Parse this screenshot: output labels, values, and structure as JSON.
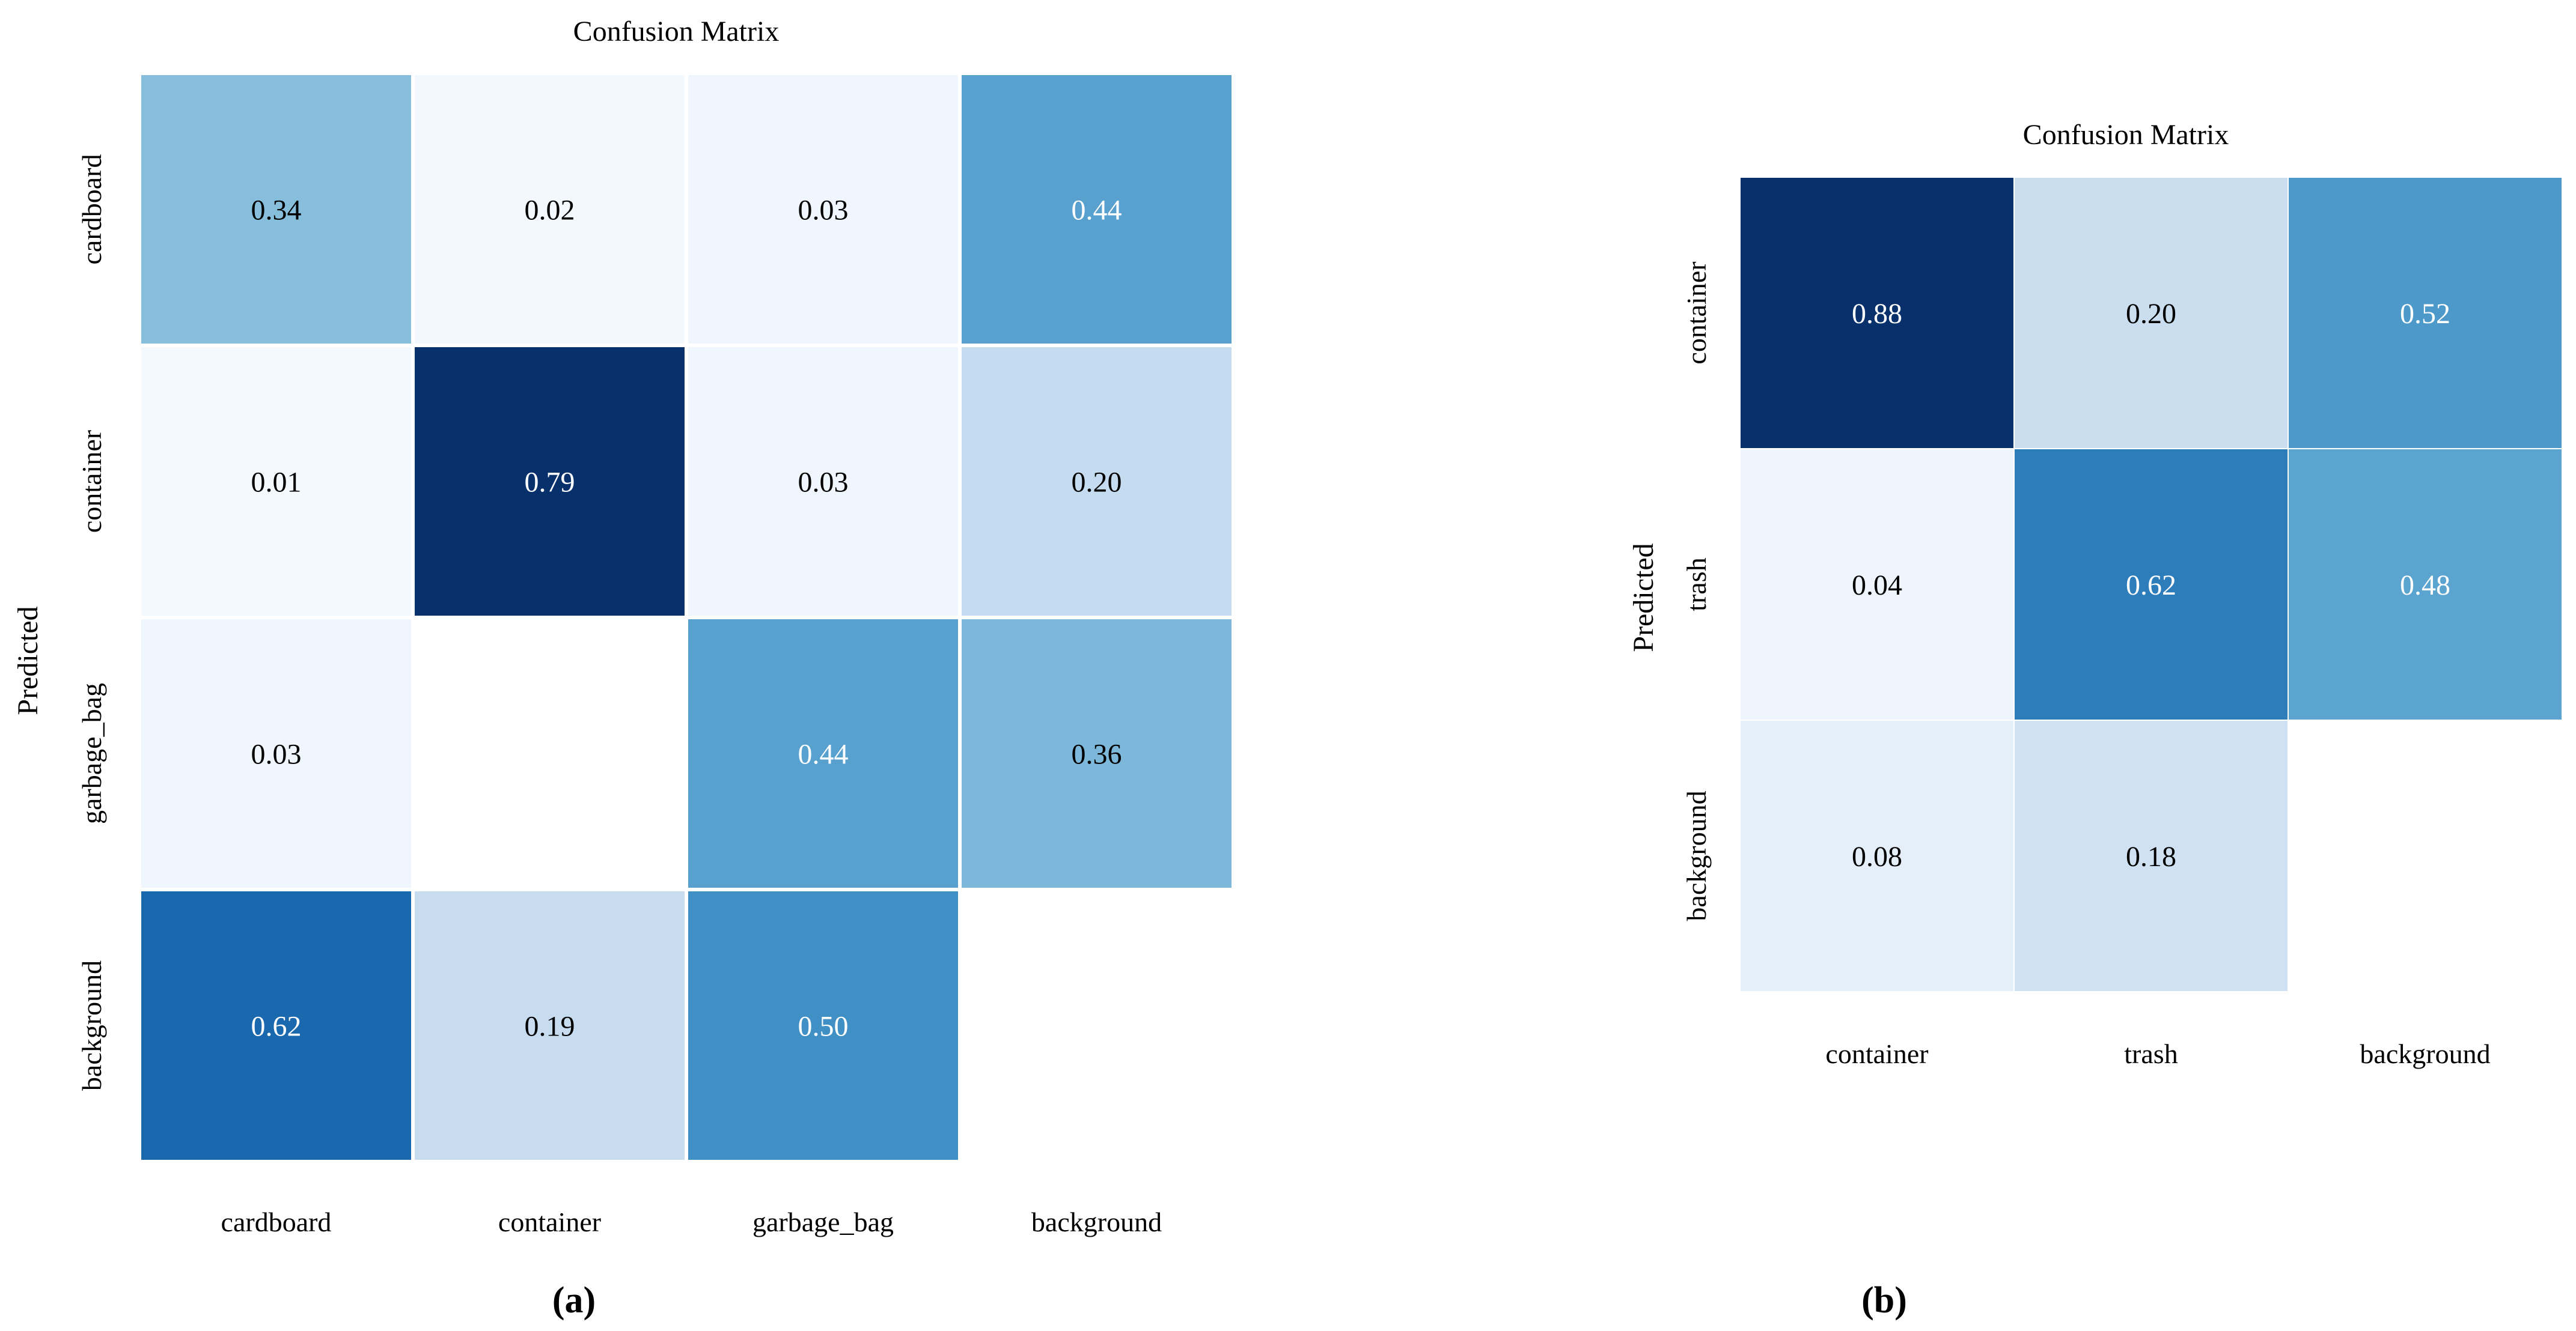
{
  "chart_data": [
    {
      "type": "heatmap",
      "panel_label": "(a)",
      "title": "Confusion Matrix",
      "ylabel": "Predicted",
      "xlabel": "",
      "x_categories": [
        "cardboard",
        "container",
        "garbage_bag",
        "background"
      ],
      "y_categories": [
        "cardboard",
        "container",
        "garbage_bag",
        "background"
      ],
      "values": [
        [
          0.34,
          0.02,
          0.03,
          0.44
        ],
        [
          0.01,
          0.79,
          0.03,
          0.2
        ],
        [
          0.03,
          null,
          0.44,
          0.36
        ],
        [
          0.62,
          0.19,
          0.5,
          null
        ]
      ],
      "colormap": "Blues",
      "vmin": 0,
      "vmax": 0.79
    },
    {
      "type": "heatmap",
      "panel_label": "(b)",
      "title": "Confusion Matrix",
      "ylabel": "Predicted",
      "xlabel": "",
      "x_categories": [
        "container",
        "trash",
        "background"
      ],
      "y_categories": [
        "container",
        "trash",
        "background"
      ],
      "values": [
        [
          0.88,
          0.2,
          0.52
        ],
        [
          0.04,
          0.62,
          0.48
        ],
        [
          0.08,
          0.18,
          null
        ]
      ],
      "colormap": "Blues",
      "vmin": 0,
      "vmax": 0.88
    }
  ]
}
